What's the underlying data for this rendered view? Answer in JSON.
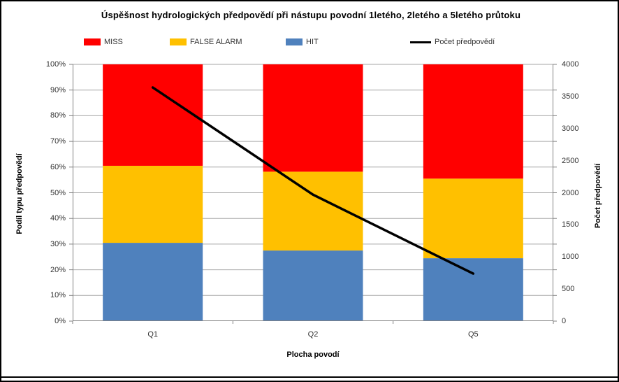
{
  "chart": {
    "title": "Úspěšnost hydrologických předpovědí při nástupu povodní  1letého, 2letého a 5letého průtoku",
    "legend": {
      "items": [
        {
          "label": "MISS",
          "color": "#FF0000",
          "swatch": "box"
        },
        {
          "label": "FALSE ALARM",
          "color": "#FFC000",
          "swatch": "box"
        },
        {
          "label": "HIT",
          "color": "#4F81BD",
          "swatch": "box"
        },
        {
          "label": "Počet předpovědí",
          "color": "#000000",
          "swatch": "line"
        }
      ]
    }
  },
  "chart_data": {
    "type": "combo",
    "subtype": "stacked-bar-with-line",
    "title": "Úspěšnost hydrologických předpovědí při nástupu povodní  1letého, 2letého a 5letého průtoku",
    "categories": [
      "Q1",
      "Q2",
      "Q5"
    ],
    "series": [
      {
        "name": "HIT",
        "chart": "bar",
        "axis": "left",
        "color": "#4F81BD",
        "values_pct": [
          30.5,
          27.5,
          24.5
        ]
      },
      {
        "name": "FALSE ALARM",
        "chart": "bar",
        "axis": "left",
        "color": "#FFC000",
        "values_pct": [
          30.0,
          30.7,
          31.0
        ]
      },
      {
        "name": "MISS",
        "chart": "bar",
        "axis": "left",
        "color": "#FF0000",
        "values_pct": [
          39.5,
          41.8,
          44.5
        ]
      },
      {
        "name": "Počet předpovědí",
        "chart": "line",
        "axis": "right",
        "color": "#000000",
        "values": [
          3640,
          1970,
          740
        ]
      }
    ],
    "left_axis": {
      "title": "Podíl typu předpovědí",
      "min": 0,
      "max": 100,
      "ticks": [
        "0%",
        "10%",
        "20%",
        "30%",
        "40%",
        "50%",
        "60%",
        "70%",
        "80%",
        "90%",
        "100%"
      ]
    },
    "right_axis": {
      "title": "Počet předpovědí",
      "min": 0,
      "max": 4000,
      "ticks": [
        "0",
        "500",
        "1000",
        "1500",
        "2000",
        "2500",
        "3000",
        "3500",
        "4000"
      ]
    },
    "x_axis": {
      "title": "Plocha povodí",
      "labels": [
        "Q1",
        "Q2",
        "Q5"
      ]
    },
    "grid": true,
    "legend_position": "top",
    "colors": {
      "gridline": "#A6A6A6",
      "axis_line": "#808080",
      "background": "#FFFFFF",
      "border": "#000000"
    }
  }
}
